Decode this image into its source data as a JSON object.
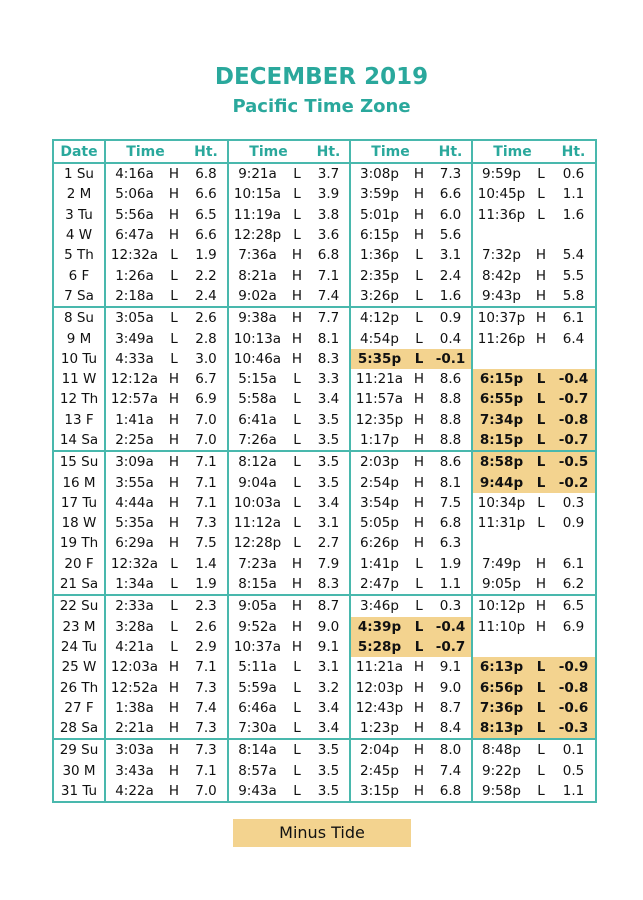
{
  "header": {
    "title": "DECEMBER 2019",
    "subtitle": "Pacific Time Zone"
  },
  "table": {
    "columns": [
      "Date",
      "Time",
      "Ht.",
      "Time",
      "Ht.",
      "Time",
      "Ht.",
      "Time",
      "Ht."
    ],
    "rows": [
      {
        "date": "1 Su",
        "tides": [
          [
            "4:16a",
            "H",
            "6.8"
          ],
          [
            "9:21a",
            "L",
            "3.7"
          ],
          [
            "3:08p",
            "H",
            "7.3"
          ],
          [
            "9:59p",
            "L",
            "0.6"
          ]
        ]
      },
      {
        "date": "2 M",
        "tides": [
          [
            "5:06a",
            "H",
            "6.6"
          ],
          [
            "10:15a",
            "L",
            "3.9"
          ],
          [
            "3:59p",
            "H",
            "6.6"
          ],
          [
            "10:45p",
            "L",
            "1.1"
          ]
        ]
      },
      {
        "date": "3 Tu",
        "tides": [
          [
            "5:56a",
            "H",
            "6.5"
          ],
          [
            "11:19a",
            "L",
            "3.8"
          ],
          [
            "5:01p",
            "H",
            "6.0"
          ],
          [
            "11:36p",
            "L",
            "1.6"
          ]
        ]
      },
      {
        "date": "4 W",
        "tides": [
          [
            "6:47a",
            "H",
            "6.6"
          ],
          [
            "12:28p",
            "L",
            "3.6"
          ],
          [
            "6:15p",
            "H",
            "5.6"
          ],
          null
        ]
      },
      {
        "date": "5 Th",
        "tides": [
          [
            "12:32a",
            "L",
            "1.9"
          ],
          [
            "7:36a",
            "H",
            "6.8"
          ],
          [
            "1:36p",
            "L",
            "3.1"
          ],
          [
            "7:32p",
            "H",
            "5.4"
          ]
        ]
      },
      {
        "date": "6 F",
        "tides": [
          [
            "1:26a",
            "L",
            "2.2"
          ],
          [
            "8:21a",
            "H",
            "7.1"
          ],
          [
            "2:35p",
            "L",
            "2.4"
          ],
          [
            "8:42p",
            "H",
            "5.5"
          ]
        ]
      },
      {
        "date": "7 Sa",
        "tides": [
          [
            "2:18a",
            "L",
            "2.4"
          ],
          [
            "9:02a",
            "H",
            "7.4"
          ],
          [
            "3:26p",
            "L",
            "1.6"
          ],
          [
            "9:43p",
            "H",
            "5.8"
          ]
        ]
      },
      {
        "date": "8 Su",
        "tides": [
          [
            "3:05a",
            "L",
            "2.6"
          ],
          [
            "9:38a",
            "H",
            "7.7"
          ],
          [
            "4:12p",
            "L",
            "0.9"
          ],
          [
            "10:37p",
            "H",
            "6.1"
          ]
        ]
      },
      {
        "date": "9 M",
        "tides": [
          [
            "3:49a",
            "L",
            "2.8"
          ],
          [
            "10:13a",
            "H",
            "8.1"
          ],
          [
            "4:54p",
            "L",
            "0.4"
          ],
          [
            "11:26p",
            "H",
            "6.4"
          ]
        ]
      },
      {
        "date": "10 Tu",
        "tides": [
          [
            "4:33a",
            "L",
            "3.0"
          ],
          [
            "10:46a",
            "H",
            "8.3"
          ],
          [
            "5:35p",
            "L",
            "-0.1"
          ],
          null
        ]
      },
      {
        "date": "11 W",
        "tides": [
          [
            "12:12a",
            "H",
            "6.7"
          ],
          [
            "5:15a",
            "L",
            "3.3"
          ],
          [
            "11:21a",
            "H",
            "8.6"
          ],
          [
            "6:15p",
            "L",
            "-0.4"
          ]
        ]
      },
      {
        "date": "12 Th",
        "tides": [
          [
            "12:57a",
            "H",
            "6.9"
          ],
          [
            "5:58a",
            "L",
            "3.4"
          ],
          [
            "11:57a",
            "H",
            "8.8"
          ],
          [
            "6:55p",
            "L",
            "-0.7"
          ]
        ]
      },
      {
        "date": "13 F",
        "tides": [
          [
            "1:41a",
            "H",
            "7.0"
          ],
          [
            "6:41a",
            "L",
            "3.5"
          ],
          [
            "12:35p",
            "H",
            "8.8"
          ],
          [
            "7:34p",
            "L",
            "-0.8"
          ]
        ]
      },
      {
        "date": "14 Sa",
        "tides": [
          [
            "2:25a",
            "H",
            "7.0"
          ],
          [
            "7:26a",
            "L",
            "3.5"
          ],
          [
            "1:17p",
            "H",
            "8.8"
          ],
          [
            "8:15p",
            "L",
            "-0.7"
          ]
        ]
      },
      {
        "date": "15 Su",
        "tides": [
          [
            "3:09a",
            "H",
            "7.1"
          ],
          [
            "8:12a",
            "L",
            "3.5"
          ],
          [
            "2:03p",
            "H",
            "8.6"
          ],
          [
            "8:58p",
            "L",
            "-0.5"
          ]
        ]
      },
      {
        "date": "16 M",
        "tides": [
          [
            "3:55a",
            "H",
            "7.1"
          ],
          [
            "9:04a",
            "L",
            "3.5"
          ],
          [
            "2:54p",
            "H",
            "8.1"
          ],
          [
            "9:44p",
            "L",
            "-0.2"
          ]
        ]
      },
      {
        "date": "17 Tu",
        "tides": [
          [
            "4:44a",
            "H",
            "7.1"
          ],
          [
            "10:03a",
            "L",
            "3.4"
          ],
          [
            "3:54p",
            "H",
            "7.5"
          ],
          [
            "10:34p",
            "L",
            "0.3"
          ]
        ]
      },
      {
        "date": "18 W",
        "tides": [
          [
            "5:35a",
            "H",
            "7.3"
          ],
          [
            "11:12a",
            "L",
            "3.1"
          ],
          [
            "5:05p",
            "H",
            "6.8"
          ],
          [
            "11:31p",
            "L",
            "0.9"
          ]
        ]
      },
      {
        "date": "19 Th",
        "tides": [
          [
            "6:29a",
            "H",
            "7.5"
          ],
          [
            "12:28p",
            "L",
            "2.7"
          ],
          [
            "6:26p",
            "H",
            "6.3"
          ],
          null
        ]
      },
      {
        "date": "20 F",
        "tides": [
          [
            "12:32a",
            "L",
            "1.4"
          ],
          [
            "7:23a",
            "H",
            "7.9"
          ],
          [
            "1:41p",
            "L",
            "1.9"
          ],
          [
            "7:49p",
            "H",
            "6.1"
          ]
        ]
      },
      {
        "date": "21 Sa",
        "tides": [
          [
            "1:34a",
            "L",
            "1.9"
          ],
          [
            "8:15a",
            "H",
            "8.3"
          ],
          [
            "2:47p",
            "L",
            "1.1"
          ],
          [
            "9:05p",
            "H",
            "6.2"
          ]
        ]
      },
      {
        "date": "22 Su",
        "tides": [
          [
            "2:33a",
            "L",
            "2.3"
          ],
          [
            "9:05a",
            "H",
            "8.7"
          ],
          [
            "3:46p",
            "L",
            "0.3"
          ],
          [
            "10:12p",
            "H",
            "6.5"
          ]
        ]
      },
      {
        "date": "23 M",
        "tides": [
          [
            "3:28a",
            "L",
            "2.6"
          ],
          [
            "9:52a",
            "H",
            "9.0"
          ],
          [
            "4:39p",
            "L",
            "-0.4"
          ],
          [
            "11:10p",
            "H",
            "6.9"
          ]
        ]
      },
      {
        "date": "24 Tu",
        "tides": [
          [
            "4:21a",
            "L",
            "2.9"
          ],
          [
            "10:37a",
            "H",
            "9.1"
          ],
          [
            "5:28p",
            "L",
            "-0.7"
          ],
          null
        ]
      },
      {
        "date": "25 W",
        "tides": [
          [
            "12:03a",
            "H",
            "7.1"
          ],
          [
            "5:11a",
            "L",
            "3.1"
          ],
          [
            "11:21a",
            "H",
            "9.1"
          ],
          [
            "6:13p",
            "L",
            "-0.9"
          ]
        ]
      },
      {
        "date": "26 Th",
        "tides": [
          [
            "12:52a",
            "H",
            "7.3"
          ],
          [
            "5:59a",
            "L",
            "3.2"
          ],
          [
            "12:03p",
            "H",
            "9.0"
          ],
          [
            "6:56p",
            "L",
            "-0.8"
          ]
        ]
      },
      {
        "date": "27 F",
        "tides": [
          [
            "1:38a",
            "H",
            "7.4"
          ],
          [
            "6:46a",
            "L",
            "3.4"
          ],
          [
            "12:43p",
            "H",
            "8.7"
          ],
          [
            "7:36p",
            "L",
            "-0.6"
          ]
        ]
      },
      {
        "date": "28 Sa",
        "tides": [
          [
            "2:21a",
            "H",
            "7.3"
          ],
          [
            "7:30a",
            "L",
            "3.4"
          ],
          [
            "1:23p",
            "H",
            "8.4"
          ],
          [
            "8:13p",
            "L",
            "-0.3"
          ]
        ]
      },
      {
        "date": "29 Su",
        "tides": [
          [
            "3:03a",
            "H",
            "7.3"
          ],
          [
            "8:14a",
            "L",
            "3.5"
          ],
          [
            "2:04p",
            "H",
            "8.0"
          ],
          [
            "8:48p",
            "L",
            "0.1"
          ]
        ]
      },
      {
        "date": "30 M",
        "tides": [
          [
            "3:43a",
            "H",
            "7.1"
          ],
          [
            "8:57a",
            "L",
            "3.5"
          ],
          [
            "2:45p",
            "H",
            "7.4"
          ],
          [
            "9:22p",
            "L",
            "0.5"
          ]
        ]
      },
      {
        "date": "31 Tu",
        "tides": [
          [
            "4:22a",
            "H",
            "7.0"
          ],
          [
            "9:43a",
            "L",
            "3.5"
          ],
          [
            "3:15p",
            "H",
            "6.8"
          ],
          [
            "9:58p",
            "L",
            "1.1"
          ]
        ]
      }
    ]
  },
  "legend": {
    "label": "Minus Tide"
  }
}
